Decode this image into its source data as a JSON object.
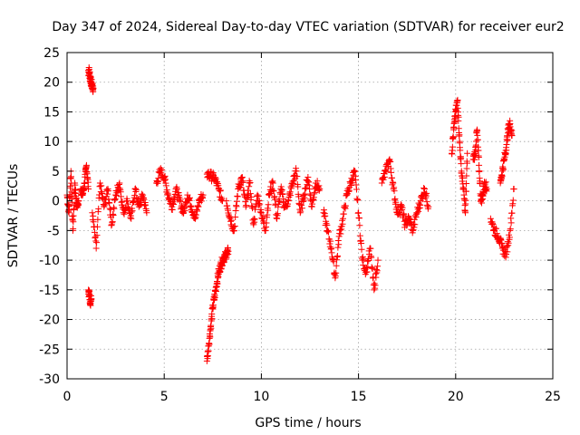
{
  "chart_data": {
    "type": "scatter",
    "title": "Day 347 of 2024, Sidereal Day-to-day VTEC variation (SDTVAR) for receiver eur2",
    "xlabel": "GPS time / hours",
    "ylabel": "SDTVAR / TECUs",
    "xlim": [
      0,
      25
    ],
    "ylim": [
      -30,
      25
    ],
    "x_ticks": [
      0,
      5,
      10,
      15,
      20,
      25
    ],
    "y_ticks": [
      -30,
      -25,
      -20,
      -15,
      -10,
      -5,
      0,
      5,
      10,
      15,
      20,
      25
    ],
    "grid": true,
    "marker": "+",
    "color": "#ff0000",
    "series": [
      {
        "name": "SDTVAR",
        "segments": [
          {
            "x": [
              0.0,
              0.1,
              0.2,
              0.3,
              0.4,
              0.5,
              0.6
            ],
            "y": [
              1,
              -2,
              5,
              -5,
              3,
              -1,
              0
            ]
          },
          {
            "x": [
              0.7,
              0.8,
              0.9,
              1.0,
              1.1
            ],
            "y": [
              2,
              1,
              3,
              6,
              2
            ]
          },
          {
            "x": [
              1.1,
              1.15,
              1.2,
              1.25,
              1.3,
              1.35
            ],
            "y": [
              22,
              21.5,
              20.5,
              20,
              19.5,
              19
            ]
          },
          {
            "x": [
              1.1,
              1.15,
              1.2,
              1.25
            ],
            "y": [
              -15,
              -16,
              -17,
              -16.5
            ]
          },
          {
            "x": [
              1.3,
              1.5,
              1.7,
              1.9,
              2.1,
              2.3,
              2.5,
              2.7,
              2.9,
              3.1,
              3.3,
              3.5,
              3.7,
              3.9,
              4.1
            ],
            "y": [
              -2,
              -8,
              3,
              -1,
              2,
              -4,
              1,
              3,
              -2,
              0,
              -3,
              2,
              -1,
              1,
              -2
            ]
          },
          {
            "x": [
              4.6,
              4.8,
              5.0,
              5.2,
              5.4,
              5.6,
              5.8,
              6.0,
              6.2,
              6.4,
              6.6,
              6.8,
              7.0
            ],
            "y": [
              3,
              5,
              4,
              1,
              -1,
              2,
              0,
              -2,
              1,
              -1,
              -3,
              0,
              1
            ]
          },
          {
            "x": [
              7.2,
              7.3,
              7.4,
              7.5,
              7.6,
              7.7,
              7.8,
              7.9,
              8.0,
              8.1,
              8.2,
              8.3
            ],
            "y": [
              -27,
              -24,
              -21,
              -18,
              -16,
              -14,
              -12,
              -11,
              -10,
              -9.5,
              -9,
              -8.5
            ]
          },
          {
            "x": [
              7.2,
              7.4,
              7.6,
              7.8,
              8.0
            ],
            "y": [
              4.5,
              4.2,
              3.8,
              2,
              0
            ]
          },
          {
            "x": [
              8.2,
              8.4,
              8.6,
              8.8,
              9.0,
              9.2,
              9.4,
              9.6,
              9.8,
              10.0,
              10.2,
              10.4,
              10.6,
              10.8,
              11.0,
              11.2,
              11.4,
              11.6,
              11.8,
              12.0,
              12.2,
              12.4,
              12.6,
              12.8,
              13.0
            ],
            "y": [
              0,
              -3,
              -5,
              2,
              4,
              -1,
              3,
              -4,
              1,
              -2,
              -5,
              1,
              3,
              -3,
              2,
              -1,
              0,
              3,
              5,
              -2,
              1,
              4,
              -1,
              3,
              2
            ]
          },
          {
            "x": [
              13.2,
              13.4,
              13.6,
              13.8,
              14.0,
              14.2,
              14.4,
              14.6,
              14.8,
              15.0,
              15.2,
              15.4,
              15.6,
              15.8,
              16.0
            ],
            "y": [
              -2,
              -5,
              -8,
              -13,
              -6,
              -3,
              1,
              3,
              5,
              -2,
              -10,
              -12,
              -8,
              -15,
              -10
            ]
          },
          {
            "x": [
              16.2,
              16.4,
              16.6,
              16.8,
              17.0,
              17.2,
              17.4,
              17.6,
              17.8,
              18.0,
              18.2,
              18.4,
              18.6
            ],
            "y": [
              3,
              5,
              7,
              2,
              -2,
              -1,
              -4,
              -3,
              -5,
              -2,
              0,
              2,
              -1
            ]
          },
          {
            "x": [
              19.8,
              19.9,
              20.0,
              20.1,
              20.2,
              20.3,
              20.4,
              20.5,
              20.6
            ],
            "y": [
              8,
              12,
              15,
              17,
              10,
              5,
              2,
              -2,
              8
            ]
          },
          {
            "x": [
              20.9,
              21.0,
              21.1,
              21.2,
              21.3,
              21.4,
              21.5,
              21.6
            ],
            "y": [
              7,
              8,
              12,
              6,
              0,
              1,
              3,
              2
            ]
          },
          {
            "x": [
              21.8,
              22.0,
              22.2,
              22.4,
              22.6,
              22.8,
              23.0
            ],
            "y": [
              -3,
              -5,
              -6,
              -8,
              -9,
              -5,
              2
            ]
          },
          {
            "x": [
              22.3,
              22.4,
              22.5,
              22.6,
              22.7,
              22.8,
              22.9
            ],
            "y": [
              3,
              5,
              7,
              9,
              12,
              13,
              11
            ]
          }
        ]
      }
    ]
  }
}
